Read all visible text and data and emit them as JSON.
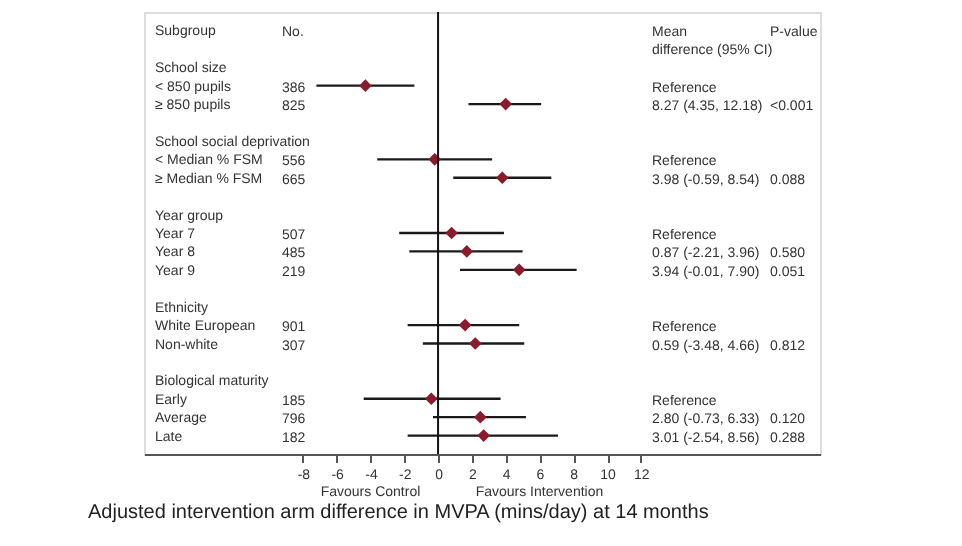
{
  "chart_data": {
    "type": "scatter",
    "title": "Adjusted intervention arm difference in  MVPA (mins/day) at  14 months",
    "categories": [
      "Subgroup",
      null,
      "School size",
      "< 850 pupils",
      "≥ 850 pupils",
      null,
      "School social deprivation",
      "< Median % FSM",
      "≥ Median % FSM",
      null,
      "Year group",
      "Year 7",
      "Year 8",
      "Year 9",
      null,
      "Ethnicity",
      "White European",
      "Non-white",
      null,
      "Biological maturity",
      "Early",
      "Average",
      "Late"
    ],
    "orientation": "horizontal",
    "series": [
      {
        "color": "#8b1a2b",
        "values": [
          null,
          null,
          null,
          -4.3,
          4.0,
          null,
          null,
          -0.2,
          3.8,
          null,
          null,
          0.8,
          1.7,
          4.8,
          null,
          null,
          1.6,
          2.2,
          null,
          null,
          -0.4,
          2.5,
          2.7
        ],
        "errors": [
          null,
          null,
          null,
          [
            -7.2,
            -1.4
          ],
          [
            1.8,
            6.1
          ],
          null,
          null,
          [
            -3.6,
            3.2
          ],
          [
            0.9,
            6.7
          ],
          null,
          null,
          [
            -2.3,
            3.9
          ],
          [
            -1.7,
            5.0
          ],
          [
            1.3,
            8.2
          ],
          null,
          null,
          [
            -1.8,
            4.8
          ],
          [
            -0.9,
            5.1
          ],
          null,
          null,
          [
            -4.4,
            3.7
          ],
          [
            -0.3,
            5.2
          ],
          [
            -1.8,
            7.1
          ]
        ]
      }
    ],
    "xlim": [
      -17.4,
      22.6
    ],
    "xticks": [
      -8,
      -6,
      -4,
      -2,
      0,
      2,
      4,
      6,
      8,
      10,
      12
    ],
    "marker": "diamond",
    "grid": false,
    "ref_lines": [
      {
        "axis": "x",
        "value": 0,
        "color": "#111111"
      }
    ],
    "annotations": [
      "No.",
      "Mean\ndifference (95% CI)",
      "P-value",
      "386",
      "Reference",
      "825",
      "8.27 (4.35, 12.18)",
      "<0.001",
      "556",
      "Reference",
      "665",
      "3.98 (-0.59, 8.54)",
      "0.088",
      "507",
      "Reference",
      "485",
      "0.87 (-2.21, 3.96)",
      "0.580",
      "219",
      "3.94 (-0.01, 7.90)",
      "0.051",
      "901",
      "Reference",
      "307",
      "0.59 (-3.48, 4.66)",
      "0.812",
      "185",
      "Reference",
      "796",
      "2.80 (-0.73, 6.33)",
      "0.120",
      "182",
      "3.01 (-2.54, 8.56)",
      "0.288",
      "Favours Control",
      "Favours Intervention"
    ]
  }
}
